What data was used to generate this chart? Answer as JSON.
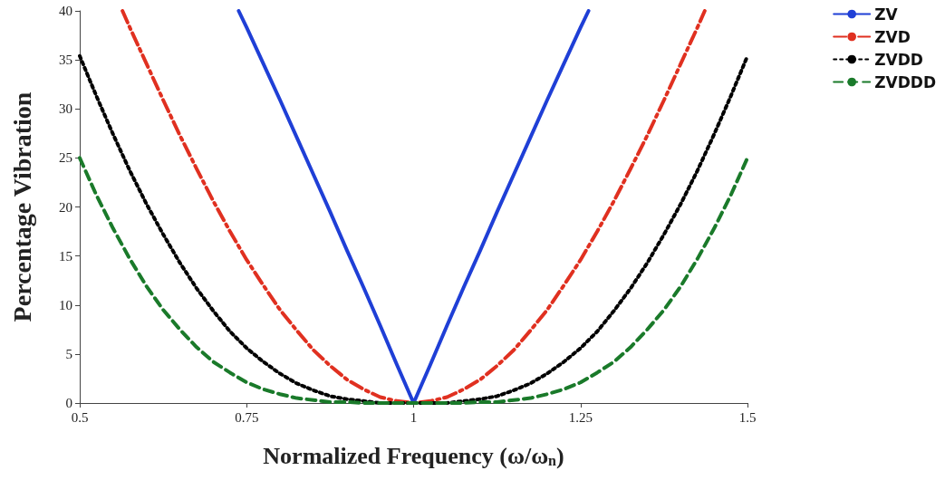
{
  "chart_data": {
    "type": "line",
    "xlabel": "Normalized Frequency (ω/ω$_{n}$)",
    "ylabel": "Percentage Vibration",
    "x": [
      0.5,
      0.525,
      0.55,
      0.575,
      0.6,
      0.625,
      0.65,
      0.675,
      0.7,
      0.725,
      0.75,
      0.775,
      0.8,
      0.825,
      0.85,
      0.875,
      0.9,
      0.925,
      0.95,
      0.975,
      1,
      1.025,
      1.05,
      1.075,
      1.1,
      1.125,
      1.15,
      1.175,
      1.2,
      1.225,
      1.25,
      1.275,
      1.3,
      1.325,
      1.35,
      1.375,
      1.4,
      1.425,
      1.45,
      1.475,
      1.5
    ],
    "xlim": [
      0.5,
      1.5
    ],
    "xticks": [
      0.5,
      0.75,
      1,
      1.25,
      1.5
    ],
    "ylim": [
      0,
      40
    ],
    "yticks": [
      0,
      5,
      10,
      15,
      20,
      25,
      30,
      35,
      40
    ],
    "grid": false,
    "legend": "top right",
    "marker": "none",
    "series": [
      {
        "name": "ZV",
        "color": "#1f3fd6",
        "line_style": "solid",
        "x": [
          0.738,
          0.75,
          0.775,
          0.8,
          0.825,
          0.85,
          0.875,
          0.9,
          0.925,
          0.95,
          0.975,
          1,
          1.025,
          1.05,
          1.075,
          1.1,
          1.125,
          1.15,
          1.175,
          1.2,
          1.225,
          1.25,
          1.262
        ],
        "values": [
          40,
          38.3,
          34.6,
          30.9,
          27.1,
          23.3,
          19.5,
          15.6,
          11.8,
          7.9,
          3.9,
          0,
          3.9,
          7.9,
          11.8,
          15.6,
          19.5,
          23.3,
          27.1,
          30.9,
          34.6,
          38.3,
          40
        ]
      },
      {
        "name": "ZVD",
        "color": "#e03020",
        "line_style": "dashdot",
        "x": [
          0.564,
          0.575,
          0.6,
          0.625,
          0.65,
          0.675,
          0.7,
          0.725,
          0.75,
          0.775,
          0.8,
          0.825,
          0.85,
          0.875,
          0.9,
          0.925,
          0.95,
          0.975,
          1,
          1.025,
          1.05,
          1.075,
          1.1,
          1.125,
          1.15,
          1.175,
          1.2,
          1.225,
          1.25,
          1.275,
          1.3,
          1.325,
          1.35,
          1.375,
          1.4,
          1.425,
          1.436
        ],
        "values": [
          40,
          38.3,
          34.6,
          30.9,
          27.3,
          23.9,
          20.6,
          17.5,
          14.6,
          12.0,
          9.5,
          7.4,
          5.4,
          3.8,
          2.4,
          1.4,
          0.6,
          0.2,
          0,
          0.2,
          0.6,
          1.4,
          2.4,
          3.8,
          5.4,
          7.4,
          9.5,
          12.0,
          14.6,
          17.5,
          20.6,
          23.9,
          27.3,
          30.9,
          34.6,
          38.3,
          40
        ]
      },
      {
        "name": "ZVDD",
        "color": "#000000",
        "line_style": "dotted",
        "values": [
          35.4,
          31.3,
          27.4,
          23.7,
          20.3,
          17.2,
          14.3,
          11.7,
          9.4,
          7.3,
          5.6,
          4.2,
          3.0,
          2.0,
          1.3,
          0.7,
          0.4,
          0.2,
          0,
          0,
          0,
          0,
          0,
          0.2,
          0.4,
          0.7,
          1.3,
          2.0,
          3.0,
          4.2,
          5.6,
          7.3,
          9.4,
          11.7,
          14.3,
          17.2,
          20.3,
          23.7,
          27.4,
          31.3,
          35.4
        ]
      },
      {
        "name": "ZVDDD",
        "color": "#1a7a2a",
        "line_style": "dashed",
        "values": [
          25.0,
          21.2,
          17.8,
          14.7,
          11.9,
          9.5,
          7.5,
          5.7,
          4.2,
          3.1,
          2.1,
          1.4,
          0.9,
          0.5,
          0.3,
          0.1,
          0.1,
          0,
          0,
          0,
          0,
          0,
          0,
          0,
          0.1,
          0.1,
          0.3,
          0.5,
          0.9,
          1.4,
          2.1,
          3.1,
          4.2,
          5.7,
          7.5,
          9.5,
          11.9,
          14.7,
          17.8,
          21.2,
          25.0
        ]
      }
    ]
  }
}
